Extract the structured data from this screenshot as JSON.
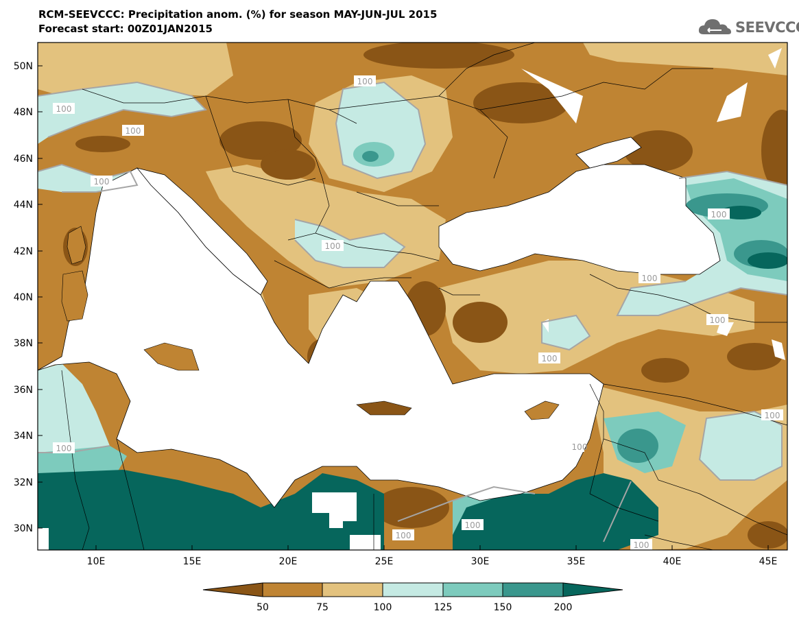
{
  "title": {
    "line1": "RCM-SEEVCCC: Precipitation anom. (%) for season MAY-JUN-JUL 2015",
    "line2": "Forecast start: 00Z01JAN2015"
  },
  "logo": {
    "text": "SEEVCCC",
    "icon": "cloud-icon"
  },
  "map": {
    "x_ticks": [
      "10E",
      "15E",
      "20E",
      "25E",
      "30E",
      "35E",
      "40E",
      "45E"
    ],
    "y_ticks": [
      "50N",
      "48N",
      "46N",
      "44N",
      "42N",
      "40N",
      "38N",
      "36N",
      "34N",
      "32N",
      "30N"
    ],
    "contour_labels": [
      "100",
      "100",
      "100",
      "100",
      "100",
      "100",
      "100",
      "100",
      "100",
      "100",
      "100",
      "100",
      "100",
      "100",
      "100"
    ],
    "extent": {
      "lon": [
        7,
        46
      ],
      "lat": [
        29,
        51
      ]
    }
  },
  "legend": {
    "labels": [
      "50",
      "75",
      "100",
      "125",
      "150",
      "200"
    ],
    "colors": [
      "#8a5516",
      "#bf8433",
      "#e3c27e",
      "#c5eae3",
      "#7dcbbd",
      "#3a978d",
      "#06665c"
    ]
  },
  "colors": {
    "very_dry": "#8a5516",
    "dry": "#bf8433",
    "slightly_dry": "#e3c27e",
    "slightly_wet": "#c5eae3",
    "wet": "#7dcbbd",
    "very_wet": "#3a978d",
    "extreme_wet": "#06665c",
    "contour_line": "#a5a5a5"
  }
}
